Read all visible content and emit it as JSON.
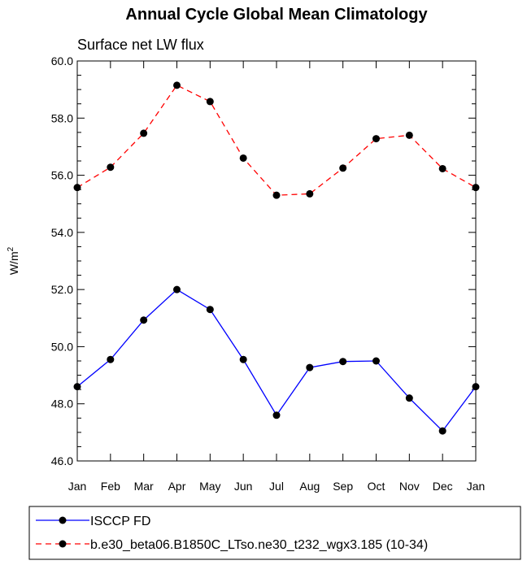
{
  "chart_data": {
    "type": "line",
    "title": "Annual Cycle Global Mean Climatology",
    "subtitle": "Surface net LW flux",
    "ylabel": "W/m",
    "ylabel_sup": "2",
    "xlabel": "",
    "categories": [
      "Jan",
      "Feb",
      "Mar",
      "Apr",
      "May",
      "Jun",
      "Jul",
      "Aug",
      "Sep",
      "Oct",
      "Nov",
      "Dec",
      "Jan"
    ],
    "ylim": [
      46.0,
      60.0
    ],
    "yticks": [
      "46.0",
      "48.0",
      "50.0",
      "52.0",
      "54.0",
      "56.0",
      "58.0",
      "60.0"
    ],
    "series": [
      {
        "name": "ISCCP FD",
        "color": "#0000ff",
        "dash": "solid",
        "marker": "filled-circle",
        "values": [
          48.6,
          49.55,
          50.93,
          52.0,
          51.3,
          49.55,
          47.6,
          49.27,
          49.48,
          49.5,
          48.2,
          47.05,
          48.6
        ]
      },
      {
        "name": "b.e30_beta06.B1850C_LTso.ne30_t232_wgx3.185 (10-34)",
        "color": "#ff0000",
        "dash": "dashed",
        "marker": "filled-circle",
        "values": [
          55.57,
          56.28,
          57.47,
          59.15,
          58.58,
          56.6,
          55.3,
          55.35,
          56.25,
          57.28,
          57.4,
          56.23,
          55.57
        ]
      }
    ],
    "grid": false,
    "legend": "bottom"
  }
}
